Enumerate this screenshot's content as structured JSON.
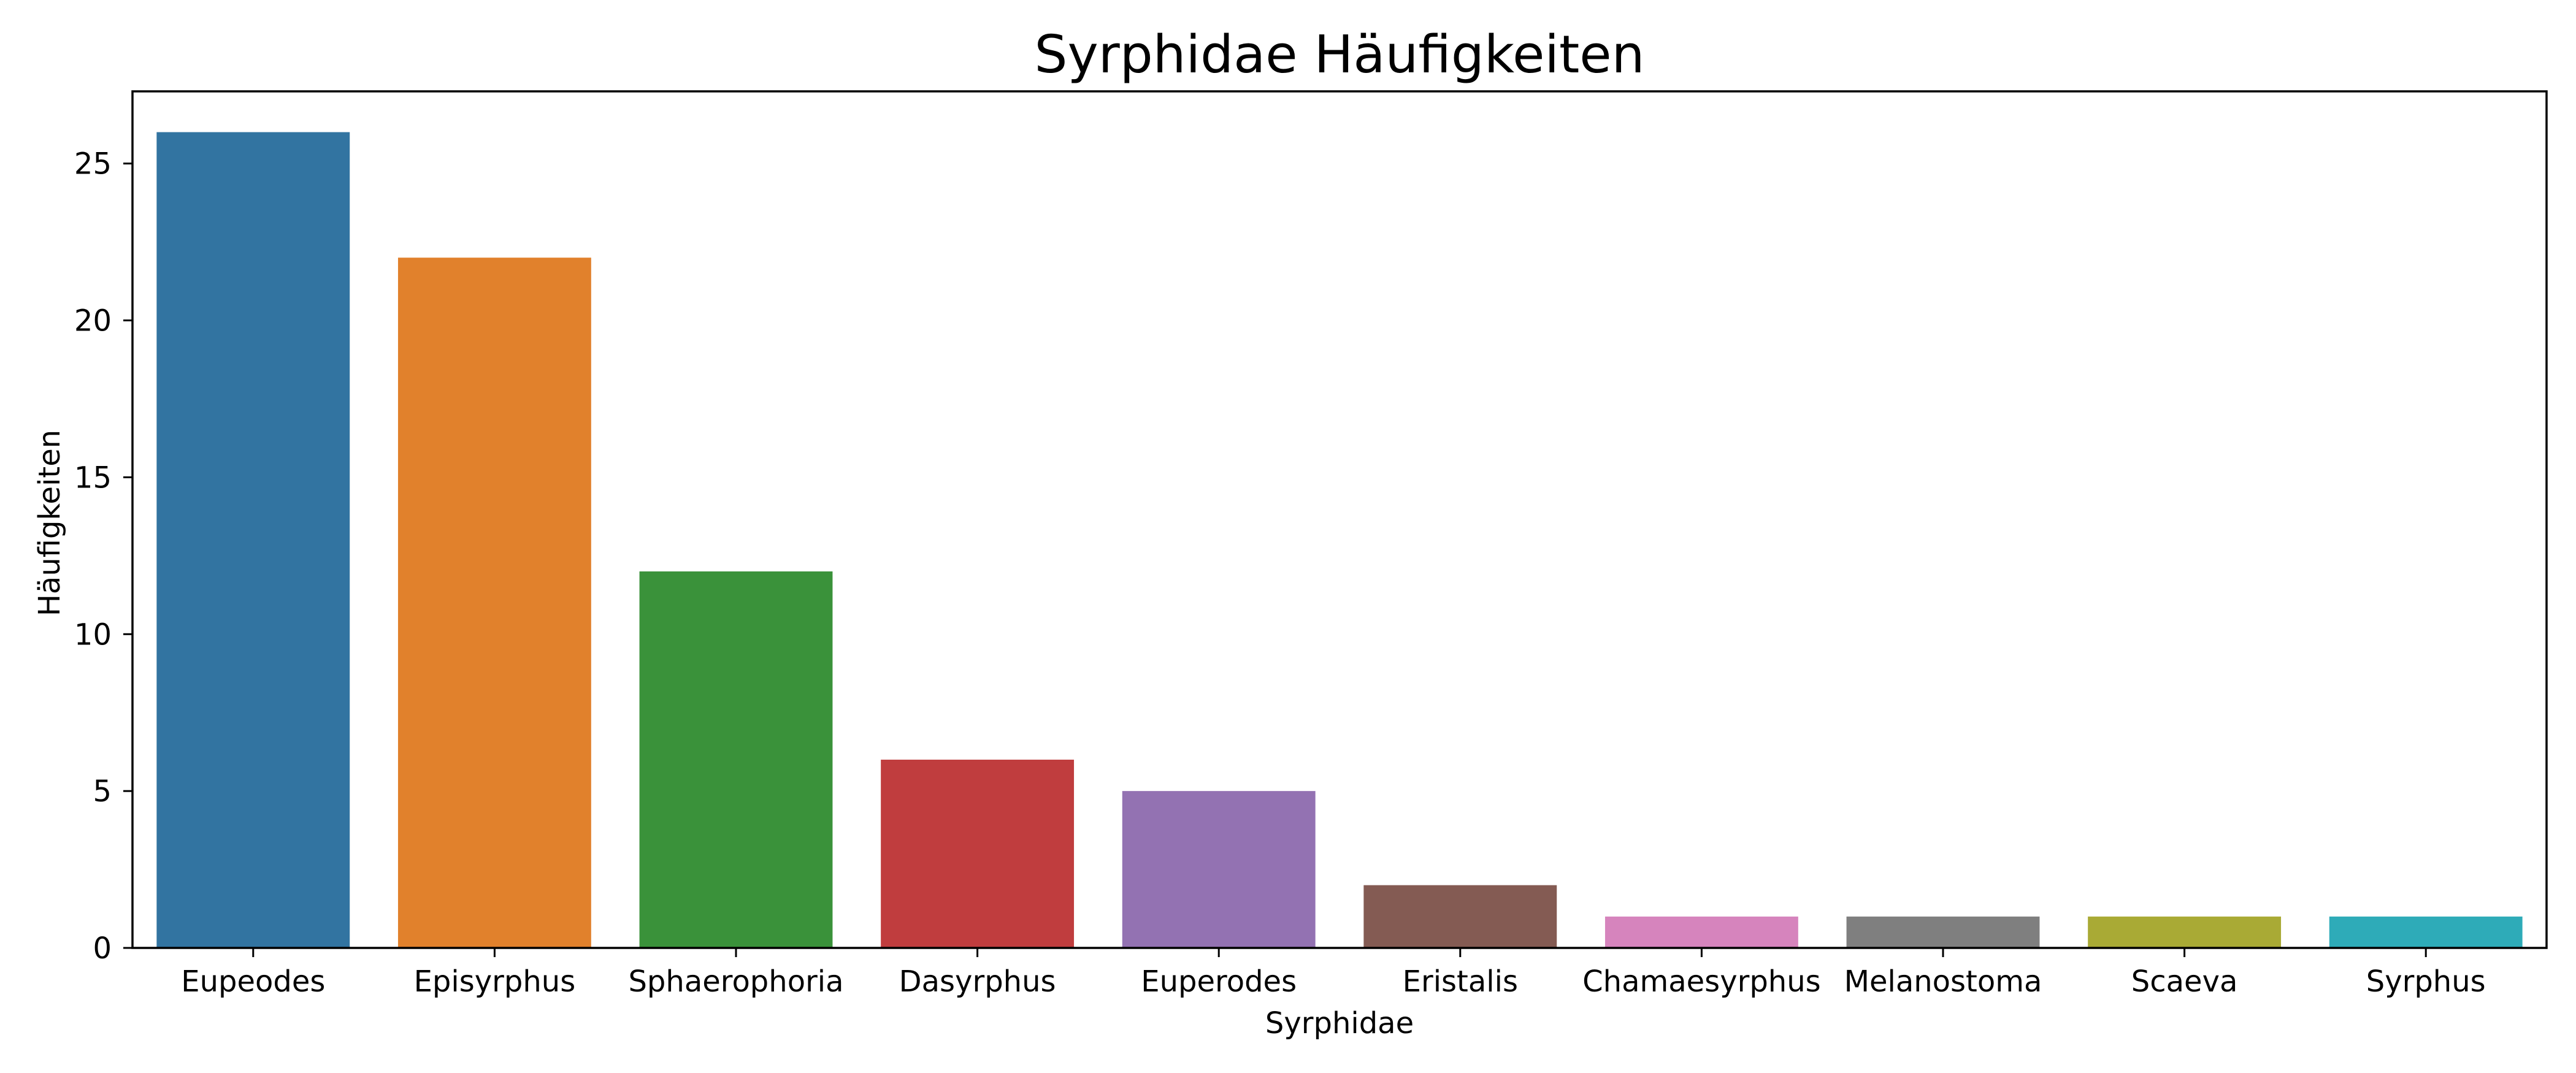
{
  "chart_data": {
    "type": "bar",
    "title": "Syrphidae Häufigkeiten",
    "xlabel": "Syrphidae",
    "ylabel": "Häufigkeiten",
    "categories": [
      "Eupeodes",
      "Episyrphus",
      "Sphaerophoria",
      "Dasyrphus",
      "Euperodes",
      "Eristalis",
      "Chamaesyrphus",
      "Melanostoma",
      "Scaeva",
      "Syrphus"
    ],
    "values": [
      26,
      22,
      12,
      6,
      5,
      2,
      1,
      1,
      1,
      1
    ],
    "colors": [
      "#3274a1",
      "#e1812c",
      "#3a923a",
      "#c03d3e",
      "#9372b2",
      "#845b53",
      "#d684bd",
      "#7f7f7f",
      "#a9aa35",
      "#2eabb8"
    ],
    "ylim": [
      0,
      27.3
    ],
    "yticks": [
      0,
      5,
      10,
      15,
      20,
      25
    ],
    "grid": false,
    "legend": "none"
  }
}
